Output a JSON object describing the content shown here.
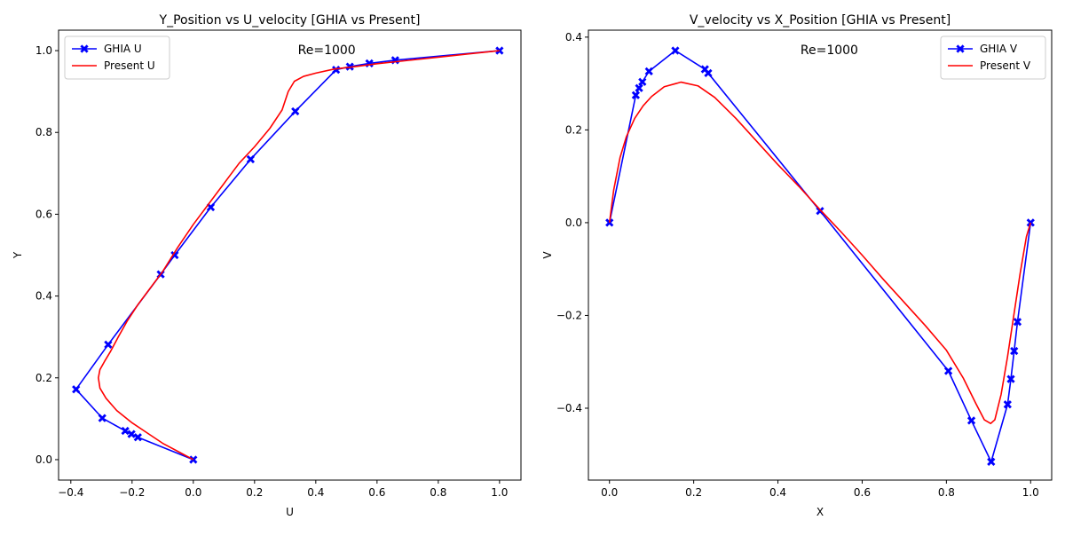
{
  "chart_data": [
    {
      "type": "line",
      "title": "Y_Position vs U_velocity [GHIA vs Present]",
      "xlabel": "U",
      "ylabel": "Y",
      "xlim": [
        -0.44,
        1.07
      ],
      "ylim": [
        -0.05,
        1.05
      ],
      "xticks": [
        -0.4,
        -0.2,
        0.0,
        0.2,
        0.4,
        0.6,
        0.8,
        1.0
      ],
      "xtick_labels": [
        "−0.4",
        "−0.2",
        "0.0",
        "0.2",
        "0.4",
        "0.6",
        "0.8",
        "1.0"
      ],
      "yticks": [
        0.0,
        0.2,
        0.4,
        0.6,
        0.8,
        1.0
      ],
      "ytick_labels": [
        "0.0",
        "0.2",
        "0.4",
        "0.6",
        "0.8",
        "1.0"
      ],
      "annotation": "Re=1000",
      "legend_position": "top-left",
      "grid": false,
      "series": [
        {
          "name": "GHIA U",
          "color": "#0000ff",
          "marker": "X",
          "x": [
            0.0,
            -0.18109,
            -0.20196,
            -0.2222,
            -0.2973,
            -0.38289,
            -0.27805,
            -0.10648,
            -0.0608,
            0.05702,
            0.18719,
            0.33304,
            0.46604,
            0.51117,
            0.57492,
            0.65928,
            1.0
          ],
          "y": [
            0.0,
            0.0547,
            0.0625,
            0.0703,
            0.1016,
            0.1719,
            0.2813,
            0.4531,
            0.5,
            0.6172,
            0.7344,
            0.8516,
            0.9531,
            0.9609,
            0.9688,
            0.9766,
            1.0
          ]
        },
        {
          "name": "Present U",
          "color": "#ff0000",
          "marker": "none",
          "x": [
            0.0,
            -0.05,
            -0.1,
            -0.15,
            -0.2,
            -0.25,
            -0.285,
            -0.305,
            -0.31,
            -0.305,
            -0.29,
            -0.27,
            -0.245,
            -0.215,
            -0.18,
            -0.14,
            -0.1,
            -0.05,
            0.0,
            0.05,
            0.1,
            0.15,
            0.2,
            0.25,
            0.29,
            0.31,
            0.33,
            0.36,
            0.4,
            0.46,
            0.52,
            0.6,
            0.7,
            0.8,
            0.9,
            1.0
          ],
          "y": [
            0.0,
            0.02,
            0.04,
            0.065,
            0.09,
            0.12,
            0.15,
            0.175,
            0.2,
            0.22,
            0.24,
            0.265,
            0.3,
            0.34,
            0.38,
            0.42,
            0.46,
            0.52,
            0.575,
            0.625,
            0.675,
            0.725,
            0.765,
            0.81,
            0.855,
            0.9,
            0.925,
            0.937,
            0.945,
            0.955,
            0.96,
            0.968,
            0.976,
            0.984,
            0.992,
            1.0
          ]
        }
      ]
    },
    {
      "type": "line",
      "title": "V_velocity vs X_Position [GHIA vs Present]",
      "xlabel": "X",
      "ylabel": "V",
      "xlim": [
        -0.05,
        1.05
      ],
      "ylim": [
        -0.555,
        0.415
      ],
      "xticks": [
        0.0,
        0.2,
        0.4,
        0.6,
        0.8,
        1.0
      ],
      "xtick_labels": [
        "0.0",
        "0.2",
        "0.4",
        "0.6",
        "0.8",
        "1.0"
      ],
      "yticks": [
        -0.4,
        -0.2,
        0.0,
        0.2,
        0.4
      ],
      "ytick_labels": [
        "−0.4",
        "−0.2",
        "0.0",
        "0.2",
        "0.4"
      ],
      "annotation": "Re=1000",
      "legend_position": "top-right",
      "grid": false,
      "series": [
        {
          "name": "GHIA V",
          "color": "#0000ff",
          "marker": "X",
          "x": [
            0.0,
            0.0625,
            0.0703,
            0.0781,
            0.0938,
            0.1563,
            0.2266,
            0.2344,
            0.5,
            0.8047,
            0.8594,
            0.9063,
            0.9453,
            0.9531,
            0.9609,
            0.9688,
            1.0
          ],
          "y": [
            0.0,
            0.27485,
            0.29012,
            0.30353,
            0.32627,
            0.37095,
            0.33075,
            0.32235,
            0.02526,
            -0.31966,
            -0.42665,
            -0.5155,
            -0.39188,
            -0.33714,
            -0.27669,
            -0.21388,
            0.0
          ]
        },
        {
          "name": "Present V",
          "color": "#ff0000",
          "marker": "none",
          "x": [
            0.0,
            0.01,
            0.025,
            0.04,
            0.06,
            0.08,
            0.1,
            0.13,
            0.17,
            0.21,
            0.25,
            0.3,
            0.35,
            0.4,
            0.45,
            0.5,
            0.55,
            0.6,
            0.65,
            0.7,
            0.75,
            0.8,
            0.84,
            0.87,
            0.89,
            0.905,
            0.915,
            0.93,
            0.945,
            0.96,
            0.975,
            0.99,
            1.0
          ],
          "y": [
            0.0,
            0.07,
            0.14,
            0.185,
            0.225,
            0.252,
            0.272,
            0.293,
            0.303,
            0.295,
            0.27,
            0.225,
            0.175,
            0.125,
            0.078,
            0.028,
            -0.02,
            -0.07,
            -0.122,
            -0.172,
            -0.222,
            -0.275,
            -0.335,
            -0.39,
            -0.425,
            -0.433,
            -0.425,
            -0.37,
            -0.29,
            -0.2,
            -0.11,
            -0.03,
            0.0
          ]
        }
      ]
    }
  ]
}
